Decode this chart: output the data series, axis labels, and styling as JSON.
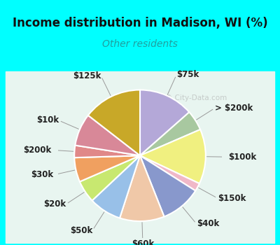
{
  "title": "Income distribution in Madison, WI (%)",
  "subtitle": "Other residents",
  "title_color": "#111111",
  "subtitle_color": "#20a0a0",
  "bg_top_color": "#00ffff",
  "chart_bg_color1": "#d8f0e8",
  "chart_bg_color2": "#f0faf8",
  "watermark": "© City-Data.com",
  "watermark_color": "#aaaaaa",
  "slices": [
    {
      "label": "$75k",
      "value": 13.5,
      "color": "#b4a8d8"
    },
    {
      "label": "> $200k",
      "value": 5.0,
      "color": "#a8c8a0"
    },
    {
      "label": "$100k",
      "value": 13.5,
      "color": "#f0f080"
    },
    {
      "label": "$150k",
      "value": 2.0,
      "color": "#f0b8c8"
    },
    {
      "label": "$40k",
      "value": 10.0,
      "color": "#8898cc"
    },
    {
      "label": "$60k",
      "value": 11.0,
      "color": "#f0c8a8"
    },
    {
      "label": "$50k",
      "value": 8.0,
      "color": "#98c0e8"
    },
    {
      "label": "$20k",
      "value": 5.5,
      "color": "#c8e870"
    },
    {
      "label": "$30k",
      "value": 6.0,
      "color": "#f0a060"
    },
    {
      "label": "$200k",
      "value": 3.0,
      "color": "#e08888"
    },
    {
      "label": "$10k",
      "value": 8.0,
      "color": "#d88898"
    },
    {
      "label": "$125k",
      "value": 14.5,
      "color": "#c8a828"
    }
  ],
  "label_fontsize": 8.5,
  "title_fontsize": 12,
  "subtitle_fontsize": 10
}
